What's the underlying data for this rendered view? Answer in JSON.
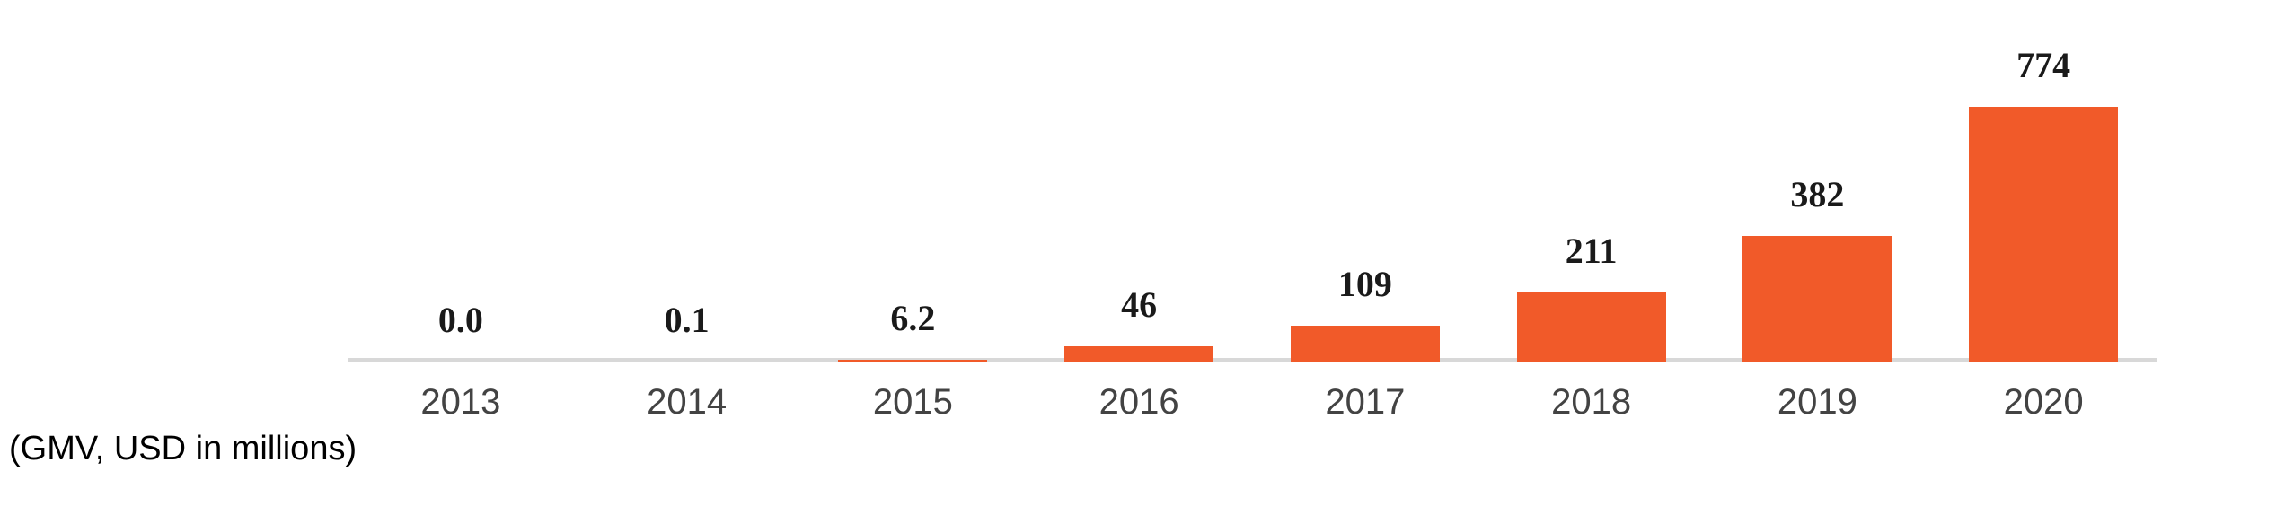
{
  "chart_data": {
    "type": "bar",
    "title": "",
    "caption": "(GMV, USD in millions)",
    "xlabel": "",
    "ylabel": "",
    "categories": [
      "2013",
      "2014",
      "2015",
      "2016",
      "2017",
      "2018",
      "2019",
      "2020"
    ],
    "values": [
      0.0,
      0.1,
      6.2,
      46,
      109,
      211,
      382,
      774
    ],
    "value_labels": [
      "0.0",
      "0.1",
      "6.2",
      "46",
      "109",
      "211",
      "382",
      "774"
    ],
    "series_name": "GMV",
    "ylim": [
      0,
      774
    ],
    "grid": false,
    "legend_position": "none",
    "bar_color": "#F15A29",
    "axis_line_color": "#D8D8D8",
    "value_label_color": "#1A1A1A",
    "tick_label_color": "#434343"
  }
}
